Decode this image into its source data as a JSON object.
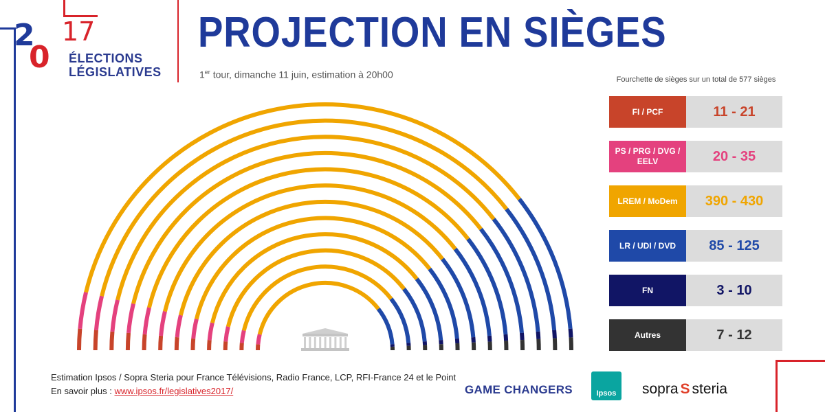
{
  "logo": {
    "year_top": "2",
    "year_mid": "0",
    "year_right": "17",
    "line1": "ÉLECTIONS",
    "line2": "LÉGISLATIVES"
  },
  "title": "PROJECTION EN SIÈGES",
  "subtitle": {
    "sup": "er",
    "prefix": "1",
    "rest": " tour, dimanche 11 juin, estimation à 20h00"
  },
  "range_title": "Fourchette de sièges sur un total de 577 sièges",
  "colors": {
    "fi_pcf": "#c8442a",
    "ps": "#e4417e",
    "lrem": "#f0a500",
    "lr": "#1f49a8",
    "fn": "#111565",
    "autres": "#333333",
    "title_blue": "#1f3a9a",
    "frame_red": "#d8232a"
  },
  "chart_data": {
    "type": "hemicycle",
    "total_seats": 577,
    "parties": [
      {
        "name": "FI / PCF",
        "range": "11 - 21",
        "min": 11,
        "max": 21,
        "midpoint": 16,
        "color": "#c8442a",
        "text_color": "#c8442a"
      },
      {
        "name": "PS / PRG / DVG / EELV",
        "range": "20 - 35",
        "min": 20,
        "max": 35,
        "midpoint": 27.5,
        "color": "#e4417e",
        "text_color": "#e4417e"
      },
      {
        "name": "LREM / MoDem",
        "range": "390 - 430",
        "min": 390,
        "max": 430,
        "midpoint": 410,
        "color": "#f0a500",
        "text_color": "#f0a500"
      },
      {
        "name": "LR / UDI / DVD",
        "range": "85 - 125",
        "min": 85,
        "max": 125,
        "midpoint": 105,
        "color": "#1f49a8",
        "text_color": "#1f49a8"
      },
      {
        "name": "FN",
        "range": "3 - 10",
        "min": 3,
        "max": 10,
        "midpoint": 6.5,
        "color": "#111565",
        "text_color": "#111565"
      },
      {
        "name": "Autres",
        "range": "7 - 12",
        "min": 7,
        "max": 12,
        "midpoint": 9.5,
        "color": "#333333",
        "text_color": "#333333"
      }
    ]
  },
  "source": {
    "line1": "Estimation Ipsos / Sopra Steria pour France Télévisions, Radio France, LCP, RFI-France 24 et le Point",
    "line2_prefix": "En savoir plus : ",
    "link": "www.ipsos.fr/legislatives2017/"
  },
  "footer": {
    "game_changers": "GAME CHANGERS",
    "ipsos": "Ipsos",
    "sopra": "sopra",
    "steria": "steria"
  }
}
